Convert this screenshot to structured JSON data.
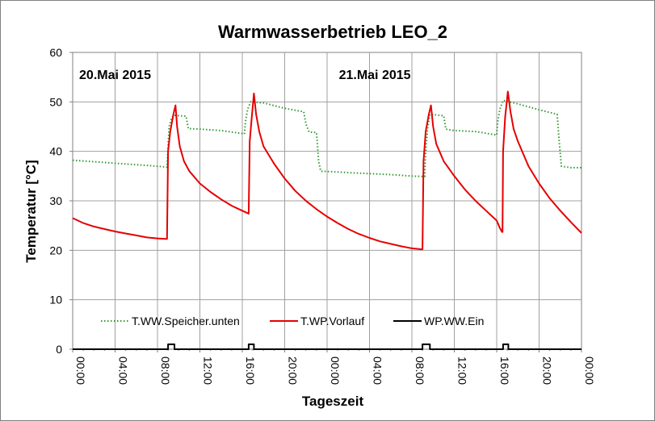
{
  "chart_data": {
    "type": "line",
    "title": "Warmwasserbetrieb LEO_2",
    "xlabel": "Tageszeit",
    "ylabel": "Temperatur [°C]",
    "ylim": [
      0,
      60
    ],
    "yticks": [
      "0",
      "10",
      "20",
      "30",
      "40",
      "50",
      "60"
    ],
    "xlim_hours": [
      0,
      48
    ],
    "xticks": [
      "00:00",
      "04:00",
      "08:00",
      "12:00",
      "16:00",
      "20:00",
      "00:00",
      "04:00",
      "08:00",
      "12:00",
      "16:00",
      "20:00",
      "00:00"
    ],
    "grid": true,
    "legend_position": "bottom-inside",
    "annotations": [
      {
        "text": "20.Mai 2015",
        "x": 4.0
      },
      {
        "text": "21.Mai 2015",
        "x": 28.5
      }
    ],
    "series": [
      {
        "name": "T.WW.Speicher.unten",
        "color": "#339933",
        "style": "dotted",
        "points": [
          [
            0,
            38.2
          ],
          [
            2,
            37.9
          ],
          [
            4,
            37.6
          ],
          [
            6,
            37.3
          ],
          [
            8,
            37.0
          ],
          [
            8.9,
            36.8
          ],
          [
            9.0,
            41.0
          ],
          [
            9.1,
            45.0
          ],
          [
            9.3,
            46.5
          ],
          [
            9.5,
            47.3
          ],
          [
            10.7,
            47.1
          ],
          [
            10.9,
            44.6
          ],
          [
            12,
            44.5
          ],
          [
            14,
            44.2
          ],
          [
            16,
            43.6
          ],
          [
            16.2,
            43.5
          ],
          [
            16.3,
            46.0
          ],
          [
            16.5,
            48.5
          ],
          [
            16.8,
            50.0
          ],
          [
            18,
            49.8
          ],
          [
            20,
            48.7
          ],
          [
            21.8,
            48.0
          ],
          [
            22.0,
            45.5
          ],
          [
            22.3,
            43.9
          ],
          [
            23.0,
            43.8
          ],
          [
            23.2,
            38.0
          ],
          [
            23.4,
            36.0
          ],
          [
            26,
            35.7
          ],
          [
            28,
            35.5
          ],
          [
            30,
            35.3
          ],
          [
            32,
            35.0
          ],
          [
            33.2,
            34.9
          ],
          [
            33.3,
            40.0
          ],
          [
            33.5,
            45.0
          ],
          [
            33.7,
            47.5
          ],
          [
            35.0,
            47.2
          ],
          [
            35.2,
            44.5
          ],
          [
            36,
            44.2
          ],
          [
            38,
            44.0
          ],
          [
            40,
            43.3
          ],
          [
            40.1,
            46.0
          ],
          [
            40.3,
            48.5
          ],
          [
            40.6,
            50.3
          ],
          [
            42,
            49.6
          ],
          [
            44,
            48.4
          ],
          [
            45.7,
            47.5
          ],
          [
            45.9,
            42.0
          ],
          [
            46.1,
            37.0
          ],
          [
            47,
            36.7
          ],
          [
            48,
            36.7
          ]
        ]
      },
      {
        "name": "T.WP.Vorlauf",
        "color": "#e60000",
        "style": "solid",
        "points": [
          [
            0,
            26.5
          ],
          [
            0.5,
            26.0
          ],
          [
            1,
            25.5
          ],
          [
            2,
            24.8
          ],
          [
            3,
            24.3
          ],
          [
            4,
            23.8
          ],
          [
            5,
            23.4
          ],
          [
            6,
            23.0
          ],
          [
            7,
            22.6
          ],
          [
            8,
            22.4
          ],
          [
            8.8,
            22.3
          ],
          [
            8.9,
            22.3
          ],
          [
            9.0,
            40.0
          ],
          [
            9.2,
            44.0
          ],
          [
            9.5,
            47.5
          ],
          [
            9.7,
            49.3
          ],
          [
            9.85,
            45.0
          ],
          [
            10.1,
            41.0
          ],
          [
            10.5,
            38.0
          ],
          [
            11,
            36.0
          ],
          [
            12,
            33.5
          ],
          [
            13,
            31.8
          ],
          [
            14,
            30.3
          ],
          [
            15,
            29.0
          ],
          [
            16,
            28.0
          ],
          [
            16.5,
            27.5
          ],
          [
            16.6,
            27.4
          ],
          [
            16.7,
            42.0
          ],
          [
            16.9,
            47.0
          ],
          [
            17.1,
            51.7
          ],
          [
            17.3,
            47.5
          ],
          [
            17.6,
            44.0
          ],
          [
            18,
            41.0
          ],
          [
            19,
            37.5
          ],
          [
            20,
            34.5
          ],
          [
            21,
            32.0
          ],
          [
            22,
            30.0
          ],
          [
            23,
            28.3
          ],
          [
            24,
            26.8
          ],
          [
            25,
            25.5
          ],
          [
            26,
            24.3
          ],
          [
            27,
            23.3
          ],
          [
            28,
            22.5
          ],
          [
            29,
            21.8
          ],
          [
            30,
            21.3
          ],
          [
            31,
            20.8
          ],
          [
            32,
            20.4
          ],
          [
            32.9,
            20.2
          ],
          [
            33.0,
            20.2
          ],
          [
            33.1,
            38.0
          ],
          [
            33.3,
            44.0
          ],
          [
            33.6,
            47.5
          ],
          [
            33.8,
            49.3
          ],
          [
            34.0,
            45.0
          ],
          [
            34.3,
            41.5
          ],
          [
            35,
            38.0
          ],
          [
            36,
            35.0
          ],
          [
            37,
            32.3
          ],
          [
            38,
            30.0
          ],
          [
            39,
            28.0
          ],
          [
            40,
            26.0
          ],
          [
            40.3,
            24.5
          ],
          [
            40.5,
            23.7
          ],
          [
            40.55,
            23.7
          ],
          [
            40.6,
            40.0
          ],
          [
            40.8,
            47.0
          ],
          [
            40.95,
            50.0
          ],
          [
            41.05,
            52.1
          ],
          [
            41.3,
            48.0
          ],
          [
            41.6,
            44.5
          ],
          [
            42,
            42.0
          ],
          [
            43,
            37.0
          ],
          [
            44,
            33.5
          ],
          [
            45,
            30.5
          ],
          [
            46,
            28.0
          ],
          [
            47,
            25.7
          ],
          [
            48,
            23.5
          ]
        ]
      },
      {
        "name": "WP.WW.Ein",
        "color": "#000000",
        "style": "solid",
        "points": [
          [
            0,
            0
          ],
          [
            9.0,
            0
          ],
          [
            9.0,
            1
          ],
          [
            9.6,
            1
          ],
          [
            9.6,
            0
          ],
          [
            16.6,
            0
          ],
          [
            16.6,
            1
          ],
          [
            17.1,
            1
          ],
          [
            17.1,
            0
          ],
          [
            33.0,
            0
          ],
          [
            33.0,
            1
          ],
          [
            33.7,
            1
          ],
          [
            33.7,
            0
          ],
          [
            40.6,
            0
          ],
          [
            40.6,
            1
          ],
          [
            41.1,
            1
          ],
          [
            41.1,
            0
          ],
          [
            48,
            0
          ]
        ]
      }
    ]
  }
}
